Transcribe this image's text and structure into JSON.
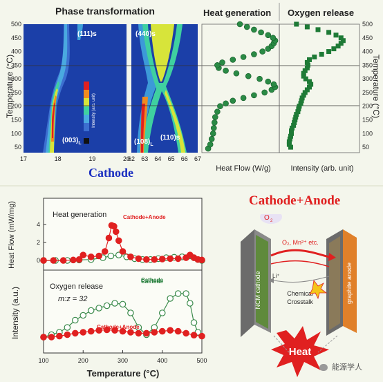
{
  "top": {
    "phase_title": "Phase transformation",
    "heat_title": "Heat generation",
    "oxygen_title": "Oxygen release",
    "cathode_label": "Cathode",
    "y_axis_label": "Temperature (°C)",
    "y_ticks": [
      "500",
      "450",
      "400",
      "350",
      "300",
      "250",
      "200",
      "150",
      "100",
      "50"
    ],
    "x_ticks_left": [
      "17",
      "18",
      "19",
      "20"
    ],
    "x_ticks_right": [
      "62",
      "63",
      "64",
      "65",
      "66",
      "67"
    ],
    "peak_labels": {
      "p111": "(111)s",
      "p440": "(440)s",
      "p003": "(003)",
      "p108": "(108)",
      "p110": "(110)s",
      "sub": "L"
    },
    "colorbar_label": "Intensity (arb. unit)",
    "heat_xlabel": "Heat Flow (W/g)",
    "oxygen_xlabel": "Intensity (arb. unit)",
    "colors": {
      "green_marker": "#1e7a36",
      "blue_bg": "#1b3fa8",
      "red": "#e02020"
    }
  },
  "bottom": {
    "ca_title": "Cathode+Anode",
    "heat_panel": {
      "title": "Heat generation",
      "ylabel": "Heat Flow (mW/mg)",
      "y_ticks": [
        "4",
        "2",
        "0"
      ],
      "series_red": "Cathode+Anode",
      "series_green": "Cathode"
    },
    "oxygen_panel": {
      "title": "Oxygen release",
      "subtitle": "m:z = 32",
      "ylabel": "Intensity (a.u.)",
      "series_green": "Cathode",
      "series_red": "Cathode+Anode"
    },
    "xlabel": "Temperature (°C)",
    "x_ticks": [
      "100",
      "200",
      "300",
      "400",
      "500"
    ],
    "diagram": {
      "o2": "O",
      "o2_sub": "2",
      "arrow_text": "O₂, Mn²⁺ etc.",
      "li": "Li⁺",
      "ncm": "NCM cathode",
      "graphite": "graphite anode",
      "crosstalk_line1": "Chemical",
      "crosstalk_line2": "Crosstalk",
      "heat": "Heat"
    },
    "watermark": "能源学人"
  },
  "chart_data": [
    {
      "type": "line",
      "title": "Heat generation",
      "xlabel": "Heat Flow (W/g)",
      "ylabel": "Temperature (°C)",
      "ylim": [
        30,
        500
      ],
      "y": [
        45,
        60,
        80,
        100,
        120,
        140,
        160,
        180,
        200,
        210,
        220,
        230,
        240,
        250,
        260,
        270,
        280,
        290,
        300,
        310,
        320,
        330,
        340,
        350,
        360,
        370,
        380,
        390,
        400,
        410,
        420,
        430,
        440,
        450,
        460,
        470,
        480,
        490,
        500
      ],
      "x": [
        0.05,
        0.08,
        0.1,
        0.12,
        0.13,
        0.14,
        0.15,
        0.18,
        0.22,
        0.3,
        0.4,
        0.55,
        0.7,
        0.85,
        0.95,
        1.0,
        0.98,
        0.9,
        0.78,
        0.62,
        0.45,
        0.3,
        0.2,
        0.18,
        0.25,
        0.4,
        0.55,
        0.7,
        0.82,
        0.9,
        0.95,
        0.98,
        1.0,
        0.97,
        0.9,
        0.8,
        0.7,
        0.6,
        0.5
      ]
    },
    {
      "type": "scatter",
      "title": "Oxygen release",
      "xlabel": "Intensity (arb. unit)",
      "ylabel": "Temperature (°C)",
      "ylim": [
        30,
        500
      ],
      "y": [
        50,
        60,
        70,
        80,
        90,
        100,
        110,
        120,
        130,
        140,
        150,
        160,
        170,
        180,
        190,
        200,
        210,
        220,
        230,
        240,
        250,
        260,
        270,
        280,
        290,
        300,
        310,
        320,
        330,
        340,
        350,
        360,
        370,
        380,
        390,
        400,
        410,
        420,
        430,
        440,
        450,
        460,
        470,
        480,
        490,
        500
      ],
      "x": [
        0.12,
        0.1,
        0.1,
        0.11,
        0.12,
        0.13,
        0.13,
        0.14,
        0.16,
        0.17,
        0.18,
        0.19,
        0.2,
        0.22,
        0.23,
        0.24,
        0.26,
        0.27,
        0.28,
        0.3,
        0.32,
        0.35,
        0.38,
        0.4,
        0.38,
        0.33,
        0.3,
        0.3,
        0.32,
        0.35,
        0.36,
        0.35,
        0.38,
        0.45,
        0.55,
        0.65,
        0.72,
        0.78,
        0.82,
        0.85,
        0.82,
        0.75,
        0.65,
        0.5,
        0.35,
        0.2
      ]
    },
    {
      "type": "line",
      "title": "Heat generation",
      "xlabel": "Temperature (°C)",
      "ylabel": "Heat Flow (mW/mg)",
      "xlim": [
        100,
        500
      ],
      "ylim": [
        -0.5,
        5
      ],
      "series": [
        {
          "name": "Cathode+Anode",
          "x": [
            100,
            125,
            150,
            175,
            190,
            200,
            220,
            240,
            255,
            265,
            272,
            278,
            283,
            290,
            300,
            320,
            340,
            360,
            380,
            400,
            420,
            440,
            460,
            470,
            480,
            490,
            500
          ],
          "values": [
            0,
            0,
            0,
            0.05,
            0.1,
            0.6,
            0.4,
            0.5,
            1.0,
            2.5,
            3.9,
            3.8,
            3.2,
            2.2,
            1.0,
            0.4,
            0.2,
            0.1,
            0.1,
            0.15,
            0.2,
            0.2,
            0.3,
            0.6,
            0.3,
            0.1,
            0.05
          ]
        },
        {
          "name": "Cathode",
          "x": [
            100,
            130,
            160,
            190,
            220,
            250,
            270,
            290,
            310,
            330,
            350,
            370,
            390,
            410,
            430,
            450,
            470,
            480,
            490,
            500
          ],
          "values": [
            0,
            0,
            0,
            0.05,
            0.1,
            0.3,
            0.5,
            0.6,
            0.4,
            0.2,
            0.1,
            0.1,
            0.2,
            0.3,
            0.35,
            0.4,
            0.5,
            0.3,
            0.1,
            0
          ]
        }
      ]
    },
    {
      "type": "line",
      "title": "Oxygen release",
      "xlabel": "Temperature (°C)",
      "ylabel": "Intensity (a.u.)",
      "xlim": [
        100,
        500
      ],
      "series": [
        {
          "name": "Cathode",
          "x": [
            100,
            120,
            140,
            160,
            180,
            200,
            220,
            240,
            260,
            280,
            300,
            320,
            340,
            360,
            380,
            400,
            420,
            440,
            460,
            470,
            480,
            490
          ],
          "values": [
            0.1,
            0.15,
            0.2,
            0.3,
            0.45,
            0.55,
            0.65,
            0.7,
            0.75,
            0.8,
            0.78,
            0.6,
            0.3,
            0.15,
            0.3,
            0.6,
            0.9,
            1.0,
            1.0,
            0.8,
            0.4,
            0.2
          ]
        },
        {
          "name": "Cathode+Anode",
          "x": [
            100,
            120,
            140,
            160,
            180,
            200,
            220,
            240,
            260,
            280,
            300,
            320,
            340,
            360,
            380,
            400,
            420,
            440,
            460,
            480,
            500
          ],
          "values": [
            0.1,
            0.1,
            0.12,
            0.15,
            0.18,
            0.2,
            0.22,
            0.24,
            0.25,
            0.24,
            0.22,
            0.2,
            0.18,
            0.18,
            0.2,
            0.22,
            0.24,
            0.22,
            0.18,
            0.14,
            0.12
          ]
        }
      ]
    }
  ]
}
